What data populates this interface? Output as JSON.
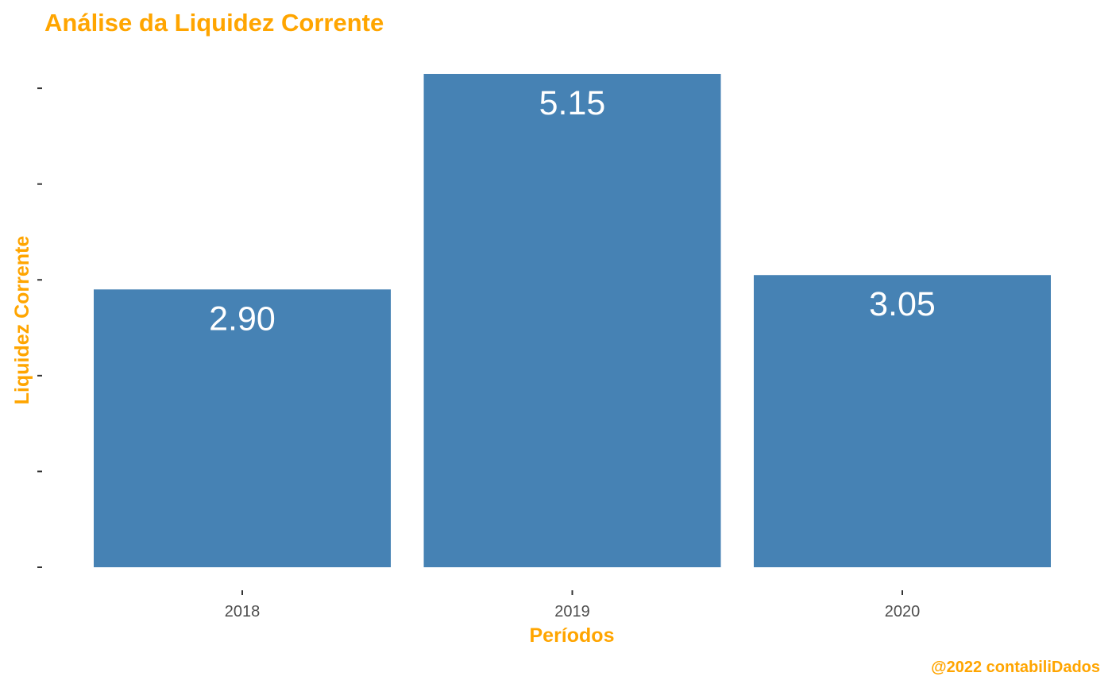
{
  "colors": {
    "accent": "#FFA500",
    "bar": "#4682B4",
    "tick": "#333333",
    "label": "#FFFFFF"
  },
  "chart_data": {
    "type": "bar",
    "title": "Análise da Liquidez Corrente",
    "xlabel": "Períodos",
    "ylabel": "Liquidez Corrente",
    "categories": [
      "2018",
      "2019",
      "2020"
    ],
    "values": [
      2.9,
      5.15,
      3.05
    ],
    "data_labels": [
      "2.90",
      "5.15",
      "3.05"
    ],
    "ylim": [
      0,
      5.15
    ],
    "y_ticks": [
      0,
      1,
      2,
      3,
      4,
      5
    ],
    "y_tick_labels_visible": false,
    "grid": false,
    "legend": "none"
  },
  "caption": "@2022 contabiliDados"
}
